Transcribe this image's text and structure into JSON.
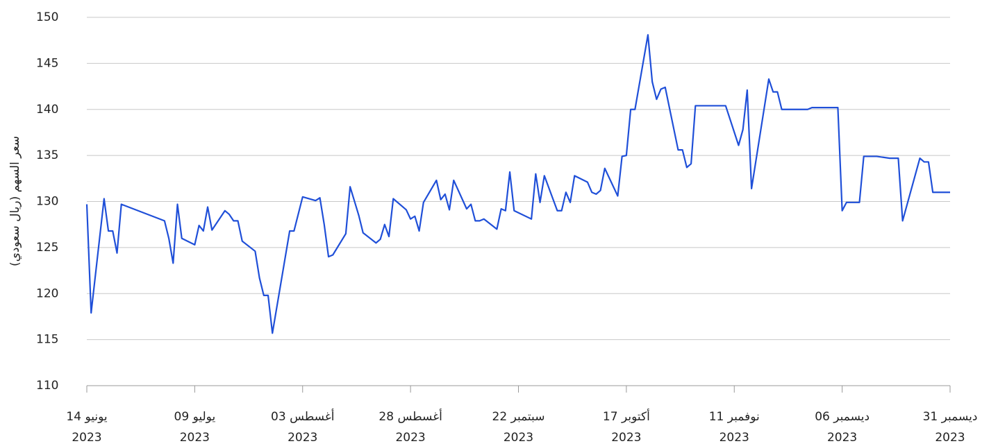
{
  "chart_data": {
    "type": "line",
    "y_label": "سعر السهم (ريال سعودي)",
    "x": [
      "2023-06-14",
      "2023-06-15",
      "2023-06-18",
      "2023-06-19",
      "2023-06-20",
      "2023-06-21",
      "2023-06-22",
      "2023-07-02",
      "2023-07-03",
      "2023-07-04",
      "2023-07-05",
      "2023-07-06",
      "2023-07-09",
      "2023-07-10",
      "2023-07-11",
      "2023-07-12",
      "2023-07-13",
      "2023-07-16",
      "2023-07-17",
      "2023-07-18",
      "2023-07-19",
      "2023-07-20",
      "2023-07-23",
      "2023-07-24",
      "2023-07-25",
      "2023-07-26",
      "2023-07-27",
      "2023-07-31",
      "2023-08-01",
      "2023-08-03",
      "2023-08-06",
      "2023-08-07",
      "2023-08-08",
      "2023-08-09",
      "2023-08-10",
      "2023-08-13",
      "2023-08-14",
      "2023-08-16",
      "2023-08-17",
      "2023-08-20",
      "2023-08-21",
      "2023-08-22",
      "2023-08-23",
      "2023-08-24",
      "2023-08-27",
      "2023-08-28",
      "2023-08-29",
      "2023-08-30",
      "2023-08-31",
      "2023-09-03",
      "2023-09-04",
      "2023-09-05",
      "2023-09-06",
      "2023-09-07",
      "2023-09-10",
      "2023-09-11",
      "2023-09-12",
      "2023-09-13",
      "2023-09-14",
      "2023-09-17",
      "2023-09-18",
      "2023-09-19",
      "2023-09-20",
      "2023-09-21",
      "2023-09-25",
      "2023-09-26",
      "2023-09-27",
      "2023-09-28",
      "2023-10-01",
      "2023-10-02",
      "2023-10-03",
      "2023-10-04",
      "2023-10-05",
      "2023-10-08",
      "2023-10-09",
      "2023-10-10",
      "2023-10-11",
      "2023-10-12",
      "2023-10-15",
      "2023-10-16",
      "2023-10-17",
      "2023-10-18",
      "2023-10-19",
      "2023-10-22",
      "2023-10-23",
      "2023-10-24",
      "2023-10-25",
      "2023-10-26",
      "2023-10-29",
      "2023-10-30",
      "2023-10-31",
      "2023-11-01",
      "2023-11-02",
      "2023-11-09",
      "2023-11-12",
      "2023-11-13",
      "2023-11-14",
      "2023-11-15",
      "2023-11-19",
      "2023-11-20",
      "2023-11-21",
      "2023-11-22",
      "2023-11-28",
      "2023-11-29",
      "2023-12-05",
      "2023-12-06",
      "2023-12-07",
      "2023-12-10",
      "2023-12-11",
      "2023-12-12",
      "2023-12-14",
      "2023-12-17",
      "2023-12-19",
      "2023-12-20",
      "2023-12-24",
      "2023-12-25",
      "2023-12-26",
      "2023-12-27",
      "2023-12-31"
    ],
    "series": [
      {
        "name": "سعر السهم",
        "color": "#1f4fd8",
        "values": [
          129.7,
          117.9,
          130.3,
          126.8,
          126.8,
          124.4,
          129.7,
          127.9,
          126,
          123.3,
          129.7,
          126,
          125.3,
          127.4,
          126.8,
          129.4,
          126.9,
          129,
          128.6,
          127.9,
          127.9,
          125.7,
          124.6,
          121.7,
          119.8,
          119.8,
          115.7,
          126.8,
          126.8,
          130.5,
          130.1,
          130.4,
          127.5,
          124,
          124.2,
          126.5,
          131.6,
          128.5,
          126.6,
          125.5,
          125.9,
          127.5,
          126.2,
          130.3,
          129.1,
          128.1,
          128.4,
          126.8,
          129.9,
          132.3,
          130.2,
          130.8,
          129.1,
          132.3,
          129.2,
          129.7,
          127.9,
          127.9,
          128.1,
          127,
          129.2,
          129,
          133.2,
          129,
          128.1,
          133,
          129.9,
          132.8,
          129,
          129,
          131,
          129.9,
          132.8,
          132.1,
          131,
          130.8,
          131.2,
          133.6,
          130.6,
          134.9,
          135,
          140,
          140,
          148.1,
          143,
          141.1,
          142.2,
          142.4,
          135.6,
          135.6,
          133.7,
          134.1,
          140.4,
          140.4,
          136.1,
          137.8,
          142.1,
          131.4,
          143.3,
          141.9,
          141.9,
          140,
          140,
          140.2,
          140.2,
          129,
          129.9,
          129.9,
          134.9,
          134.9,
          134.9,
          134.7,
          134.7,
          127.9,
          134.7,
          134.3,
          134.3,
          131,
          131
        ]
      }
    ],
    "xlim": [
      "2023-06-14",
      "2023-12-31"
    ],
    "xticks": [
      {
        "value": "2023-06-14",
        "label": "14 يونيو 2023"
      },
      {
        "value": "2023-07-09",
        "label": "09 يوليو 2023"
      },
      {
        "value": "2023-08-03",
        "label": "03 أغسطس 2023"
      },
      {
        "value": "2023-08-28",
        "label": "28 أغسطس 2023"
      },
      {
        "value": "2023-09-22",
        "label": "22 سبتمبر 2023"
      },
      {
        "value": "2023-10-17",
        "label": "17 أكتوبر 2023"
      },
      {
        "value": "2023-11-11",
        "label": "11 نوفمبر 2023"
      },
      {
        "value": "2023-12-06",
        "label": "06 ديسمبر 2023"
      },
      {
        "value": "2023-12-31",
        "label": "31 ديسمبر 2023"
      }
    ],
    "ylim": [
      110,
      150
    ],
    "yticks": [
      110,
      115,
      120,
      125,
      130,
      135,
      140,
      145,
      150
    ],
    "grid": true
  }
}
